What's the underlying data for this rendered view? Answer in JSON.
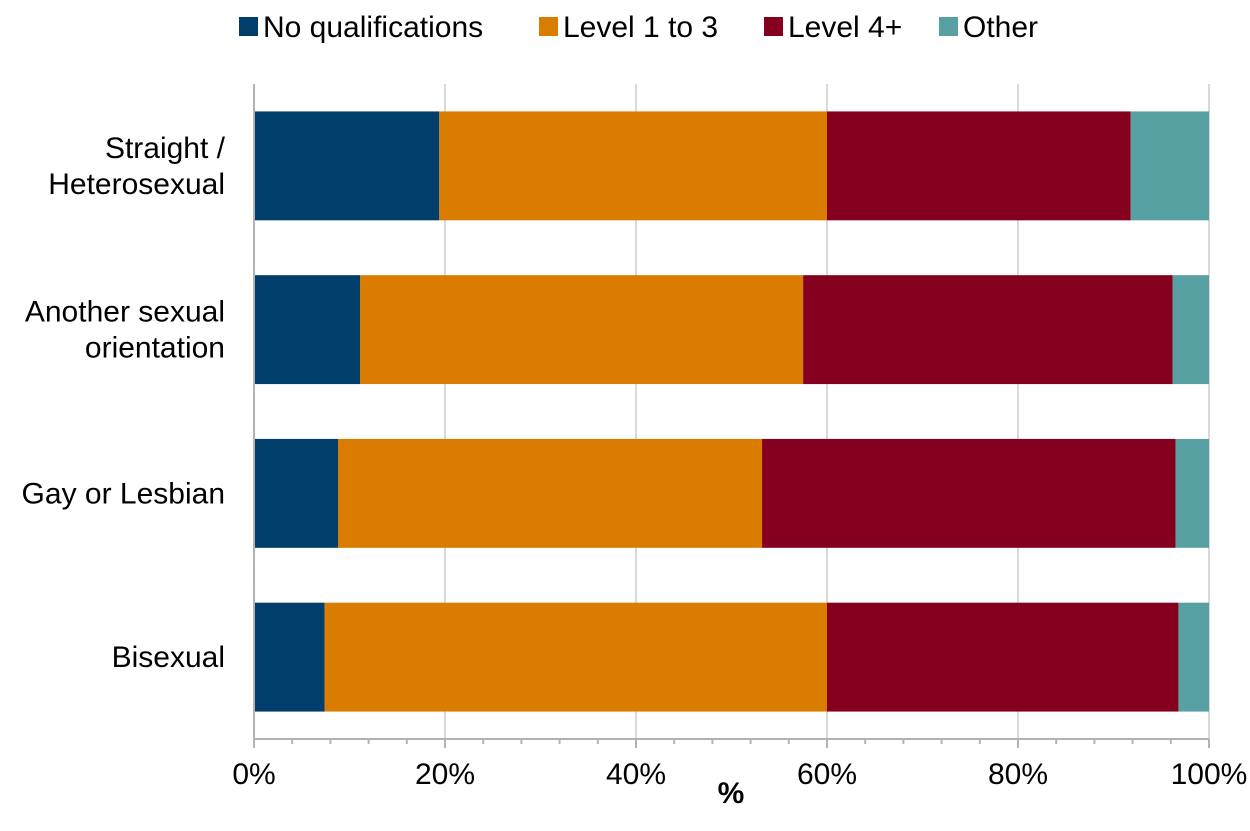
{
  "chart_data": {
    "type": "bar",
    "orientation": "horizontal",
    "stacked": true,
    "title": "",
    "xlabel": "%",
    "ylabel": "",
    "xlim": [
      0,
      100
    ],
    "x_ticks": [
      "0%",
      "20%",
      "40%",
      "60%",
      "80%",
      "100%"
    ],
    "grid": true,
    "legend_position": "top",
    "categories": [
      [
        "Straight /",
        "Heterosexual"
      ],
      [
        "Another sexual",
        "orientation"
      ],
      [
        "Gay or Lesbian"
      ],
      [
        "Bisexual"
      ]
    ],
    "series": [
      {
        "name": "No qualifications",
        "color": "#003e6b",
        "values": [
          19.4,
          11.1,
          8.8,
          7.4
        ]
      },
      {
        "name": "Level 1 to 3",
        "color": "#d97c00",
        "values": [
          40.6,
          46.4,
          44.4,
          52.6
        ]
      },
      {
        "name": "Level 4+",
        "color": "#85001e",
        "values": [
          31.8,
          38.7,
          43.3,
          36.8
        ]
      },
      {
        "name": "Other",
        "color": "#58a1a2",
        "values": [
          8.2,
          3.8,
          3.5,
          3.2
        ]
      }
    ]
  }
}
